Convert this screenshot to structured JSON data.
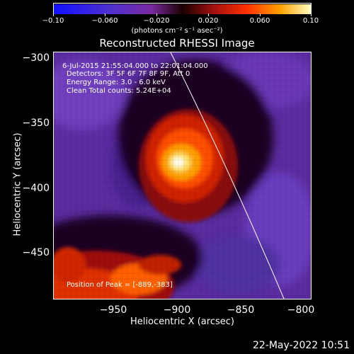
{
  "colorbar": {
    "ticks": [
      "−0.10",
      "−0.060",
      "−0.020",
      "0.020",
      "0.060",
      "0.10"
    ],
    "units": "(photons cm⁻² s⁻¹ asec⁻²)"
  },
  "title": "Reconstructed RHESSI Image",
  "info": {
    "line1": "6-Jul-2015 21:55:04.000 to 22:01:04.000",
    "line2": "Detectors: 3F 5F 6F 7F 8F 9F, Att 0",
    "line3": "Energy Range: 3.0 - 6.0 keV",
    "line4": "Clean    Total counts: 5.24E+04",
    "peak": "Position of Peak = [-889,-383]"
  },
  "axes": {
    "xlabel": "Heliocentric X (arcsec)",
    "ylabel": "Heliocentric Y (arcsec)",
    "xticks": [
      "−950",
      "−900",
      "−850",
      "−800"
    ],
    "yticks": [
      "−300",
      "−350",
      "−400",
      "−450"
    ]
  },
  "timestamp": "22-May-2022 10:51"
}
